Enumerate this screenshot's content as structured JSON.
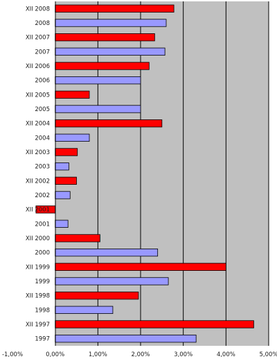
{
  "chart_data": {
    "type": "bar",
    "orientation": "horizontal",
    "categories": [
      "1997",
      "XII 1997",
      "1998",
      "XII 1998",
      "1999",
      "XII 1999",
      "2000",
      "XII 2000",
      "2001",
      "XII 2001",
      "2002",
      "XII 2002",
      "2003",
      "XII 2003",
      "2004",
      "XII 2004",
      "2005",
      "XII 2005",
      "2006",
      "XII 2006",
      "2007",
      "XII 2007",
      "2008",
      "XII 2008"
    ],
    "values": [
      3.3,
      4.65,
      1.35,
      1.95,
      2.65,
      4.0,
      2.4,
      1.05,
      0.3,
      -0.45,
      0.35,
      0.5,
      0.32,
      0.52,
      0.8,
      2.5,
      2.0,
      0.8,
      2.0,
      2.2,
      2.57,
      2.33,
      2.6,
      2.78
    ],
    "xlim": [
      -1,
      5
    ],
    "xticks": [
      "-1,00%",
      "0,00%",
      "1,00%",
      "2,00%",
      "3,00%",
      "4,00%",
      "5,00%"
    ],
    "xtick_values": [
      -1,
      0,
      1,
      2,
      3,
      4,
      5
    ],
    "grid": "vertical",
    "colors": {
      "annual": "#9999ff",
      "december": "#ff0000",
      "plot_background": "#c0c0c0",
      "bar_border": "#000000"
    }
  }
}
